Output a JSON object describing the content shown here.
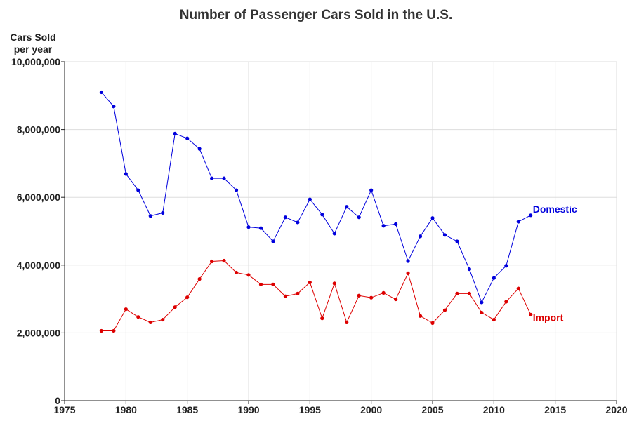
{
  "chart_data": {
    "type": "line",
    "title": "Number of Passenger Cars Sold in the U.S.",
    "ylabel": [
      "Cars Sold",
      "per year"
    ],
    "xlabel": "",
    "xlim": [
      1975,
      2020
    ],
    "ylim": [
      0,
      10000000
    ],
    "xticks": [
      "1975",
      "1980",
      "1985",
      "1990",
      "1995",
      "2000",
      "2005",
      "2010",
      "2015",
      "2020"
    ],
    "yticks": [
      "0",
      "2,000,000",
      "4,000,000",
      "6,000,000",
      "8,000,000",
      "10,000,000"
    ],
    "grid": true,
    "x": [
      1978,
      1979,
      1980,
      1981,
      1982,
      1983,
      1984,
      1985,
      1986,
      1987,
      1988,
      1989,
      1990,
      1991,
      1992,
      1993,
      1994,
      1995,
      1996,
      1997,
      1998,
      1999,
      2000,
      2001,
      2002,
      2003,
      2004,
      2005,
      2006,
      2007,
      2008,
      2009,
      2010,
      2011,
      2012,
      2013
    ],
    "series": [
      {
        "name": "Domestic",
        "color": "#0000dd",
        "values": [
          9100000,
          8680000,
          6690000,
          6210000,
          5450000,
          5540000,
          7880000,
          7740000,
          7430000,
          6560000,
          6560000,
          6210000,
          5120000,
          5090000,
          4700000,
          5410000,
          5260000,
          5940000,
          5490000,
          4930000,
          5720000,
          5410000,
          6210000,
          5160000,
          5210000,
          4120000,
          4850000,
          5390000,
          4890000,
          4700000,
          3880000,
          2900000,
          3620000,
          3980000,
          5280000,
          5470000
        ]
      },
      {
        "name": "Import",
        "color": "#dd0000",
        "values": [
          2060000,
          2060000,
          2700000,
          2470000,
          2310000,
          2390000,
          2760000,
          3050000,
          3590000,
          4110000,
          4130000,
          3780000,
          3710000,
          3430000,
          3430000,
          3080000,
          3160000,
          3490000,
          2430000,
          3460000,
          2310000,
          3100000,
          3040000,
          3180000,
          2990000,
          3760000,
          2500000,
          2290000,
          2670000,
          3160000,
          3160000,
          2600000,
          2390000,
          2920000,
          3310000,
          2540000
        ]
      }
    ]
  }
}
